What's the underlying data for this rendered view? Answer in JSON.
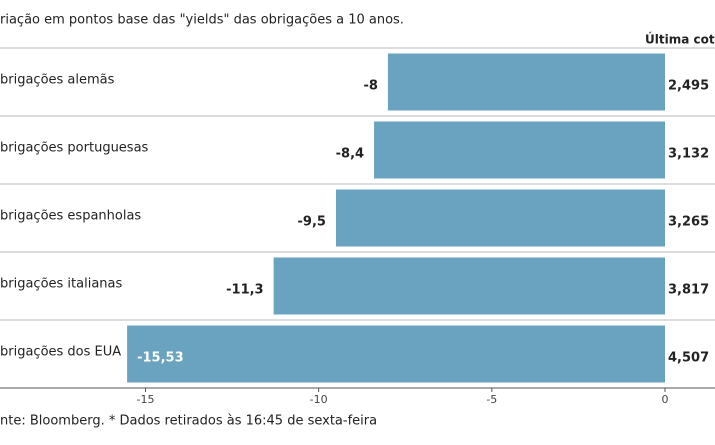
{
  "chart_data": {
    "type": "hbar",
    "title": "riação em pontos base das \"yields\" das obrigações a 10 anos.",
    "categories": [
      "brigações alemãs",
      "brigações portuguesas",
      "brigações espanholas",
      "brigações italianas",
      "brigações dos EUA"
    ],
    "values": [
      -8,
      -8.4,
      -9.5,
      -11.3,
      -15.53
    ],
    "value_labels": [
      "-8",
      "-8,4",
      "-9,5",
      "-11,3",
      "-15,53"
    ],
    "color": "#6aa3bf",
    "xlim": [
      -19.2,
      0
    ],
    "xticks": [
      -15,
      -10,
      -5,
      0
    ],
    "quotes_header": "Última cotaç",
    "quotes": [
      "2,495",
      "3,132",
      "3,265",
      "3,817",
      "4,507"
    ],
    "footer": "nte: Bloomberg.  * Dados retirados às 16:45 de sexta-feira"
  }
}
